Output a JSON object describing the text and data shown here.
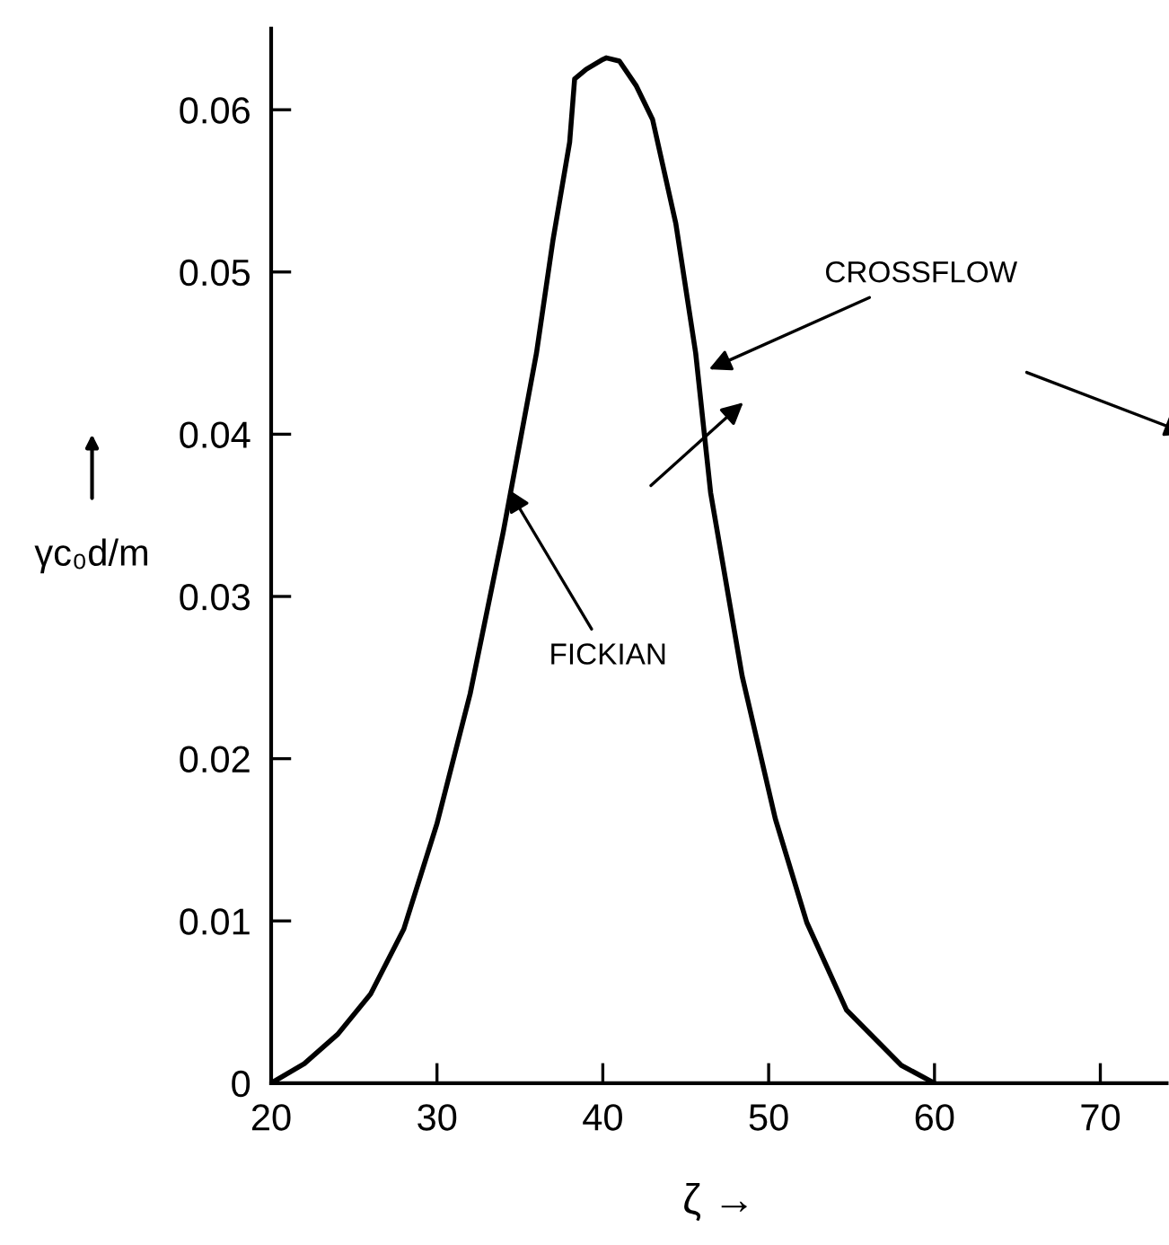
{
  "chart_data": {
    "type": "line",
    "xlabel": "ζ →",
    "ylabel": "γc₀d/m",
    "x": [
      20,
      22,
      24,
      26,
      28,
      30,
      32,
      34,
      36,
      37,
      38,
      38.3,
      39,
      40,
      40.2,
      41,
      42,
      43,
      44.4,
      45.6,
      46.5,
      48.4,
      50.4,
      52.3,
      54.7,
      58,
      60
    ],
    "series": [
      {
        "color": "#000000",
        "values": [
          0,
          0.0012,
          0.003,
          0.0055,
          0.0095,
          0.016,
          0.024,
          0.034,
          0.045,
          0.052,
          0.058,
          0.0619,
          0.0625,
          0.0631,
          0.0632,
          0.063,
          0.0615,
          0.0594,
          0.053,
          0.045,
          0.0364,
          0.0251,
          0.0163,
          0.0099,
          0.0045,
          0.0011,
          0
        ]
      }
    ],
    "xlim": [
      20,
      74
    ],
    "ylim": [
      0,
      0.065
    ],
    "xticks": [
      20,
      30,
      40,
      50,
      60,
      70
    ],
    "yticks": [
      0,
      0.01,
      0.02,
      0.03,
      0.04,
      0.05,
      0.06
    ],
    "annotations": [
      {
        "text": "CROSSFLOW",
        "x": 46.4,
        "y": 0.044
      },
      {
        "text": "FICKIAN",
        "x": 34.3,
        "y": 0.0366
      }
    ],
    "grid": false,
    "legend": false,
    "marker": "none",
    "line_style": "solid"
  }
}
